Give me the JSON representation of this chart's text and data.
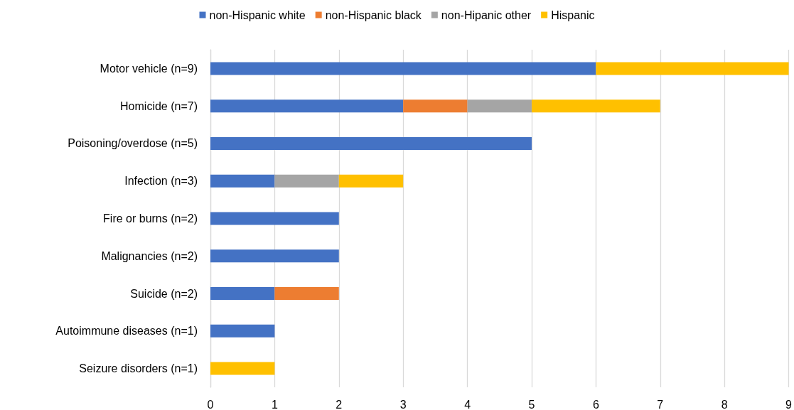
{
  "chart_data": {
    "type": "bar",
    "orientation": "horizontal",
    "stacked": true,
    "categories": [
      "Motor vehicle (n=9)",
      "Homicide (n=7)",
      "Poisoning/overdose (n=5)",
      "Infection (n=3)",
      "Fire or burns (n=2)",
      "Malignancies (n=2)",
      "Suicide (n=2)",
      "Autoimmune diseases (n=1)",
      "Seizure disorders (n=1)"
    ],
    "series": [
      {
        "name": "non-Hispanic white",
        "color": "#4472c4",
        "values": [
          6,
          3,
          5,
          1,
          2,
          2,
          1,
          1,
          0
        ]
      },
      {
        "name": "non-Hispanic black",
        "color": "#ed7d31",
        "values": [
          0,
          1,
          0,
          0,
          0,
          0,
          1,
          0,
          0
        ]
      },
      {
        "name": "non-Hipanic other",
        "color": "#a5a5a5",
        "values": [
          0,
          1,
          0,
          1,
          0,
          0,
          0,
          0,
          0
        ]
      },
      {
        "name": "Hispanic",
        "color": "#ffc000",
        "values": [
          3,
          2,
          0,
          1,
          0,
          0,
          0,
          0,
          1
        ]
      }
    ],
    "xlim": [
      0,
      9
    ],
    "xticks": [
      0,
      1,
      2,
      3,
      4,
      5,
      6,
      7,
      8,
      9
    ],
    "grid": "x",
    "legend": "top"
  }
}
